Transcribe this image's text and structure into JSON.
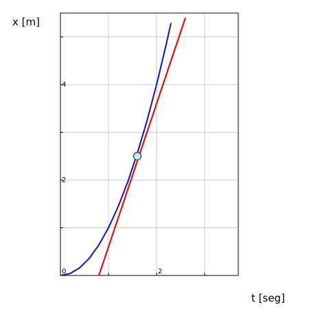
{
  "chart_data": {
    "type": "line",
    "xlabel": "t [seg]",
    "ylabel": "x [m]",
    "xlim": [
      0,
      3.7
    ],
    "ylim": [
      0,
      5.5
    ],
    "grid": true,
    "x_ticks": [
      0,
      1,
      2,
      3
    ],
    "y_ticks": [
      0,
      1,
      2,
      3,
      4,
      5
    ],
    "x_tick_labels": [
      {
        "value": 0,
        "label": "0"
      },
      {
        "value": 2,
        "label": "2"
      }
    ],
    "y_tick_labels": [
      {
        "value": 2,
        "label": "2"
      },
      {
        "value": 4,
        "label": "4"
      }
    ],
    "series": [
      {
        "kind": "curve",
        "color": "#1010c8",
        "x": [
          0,
          0.2,
          0.4,
          0.6,
          0.8,
          1.0,
          1.2,
          1.4,
          1.6,
          1.8,
          2.0,
          2.2,
          2.3
        ],
        "y": [
          0,
          0.04,
          0.16,
          0.36,
          0.64,
          1.0,
          1.44,
          1.96,
          2.56,
          3.24,
          4.0,
          4.84,
          5.29
        ]
      },
      {
        "kind": "tangent",
        "color": "#e01010",
        "x": [
          0.8,
          2.6
        ],
        "y": [
          0,
          5.4
        ]
      }
    ],
    "point": {
      "x": 1.6,
      "y": 2.5,
      "fill": "#c8ecf0",
      "stroke": "#303030"
    },
    "colors": {
      "grid": "#c8c8c8",
      "frame": "#000000"
    }
  }
}
